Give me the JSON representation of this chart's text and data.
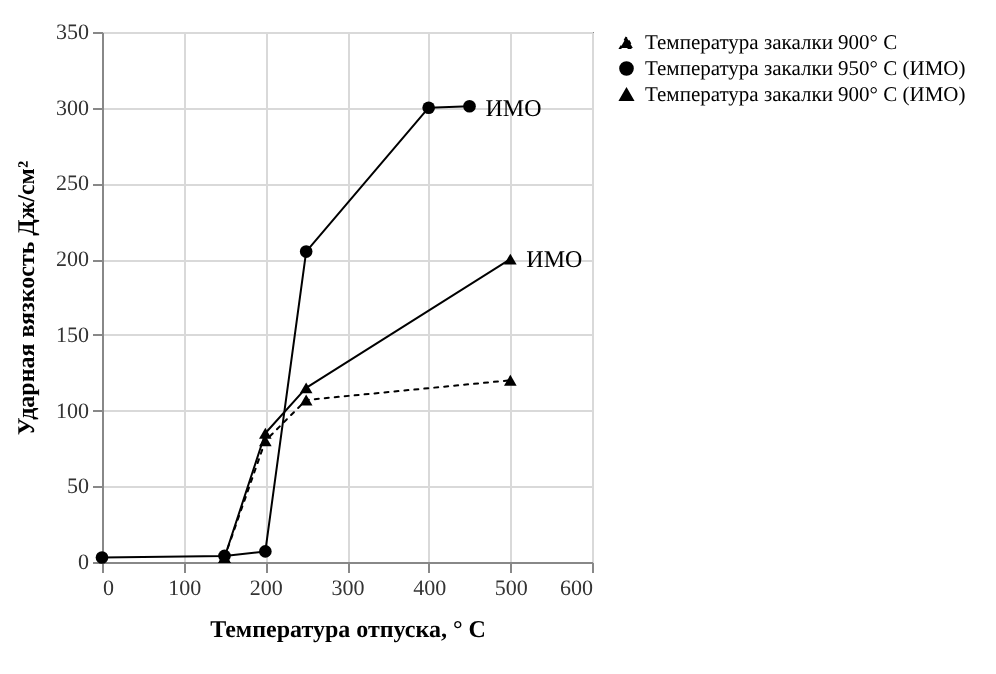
{
  "chart_data": {
    "type": "line",
    "xlabel": "Температура отпуска, ° С",
    "ylabel": "Ударная вязкость Дж/см²",
    "xlim": [
      0,
      600
    ],
    "xticks": [
      0,
      100,
      200,
      300,
      400,
      500,
      600
    ],
    "ylim": [
      0,
      350
    ],
    "yticks": [
      0,
      50,
      100,
      150,
      200,
      250,
      300,
      350
    ],
    "grid": true,
    "legend": "right",
    "annotations": [
      {
        "text": "ИМО",
        "x": 450,
        "y": 300
      },
      {
        "text": "ИМО",
        "x": 500,
        "y": 200
      }
    ],
    "series": [
      {
        "name": "Температура закалки 900° С",
        "color": "#000000",
        "marker": "triangle",
        "line_style": "dotted",
        "x": [
          150,
          200,
          250,
          500
        ],
        "values": [
          3,
          80,
          107,
          120
        ]
      },
      {
        "name": "Температура закалки 950° С (ИМО)",
        "color": "#000000",
        "marker": "circle",
        "line_style": "solid",
        "x": [
          0,
          150,
          200,
          250,
          400,
          450
        ],
        "values": [
          3,
          4,
          7,
          205,
          300,
          301
        ]
      },
      {
        "name": "Температура закалки 900° С (ИМО)",
        "color": "#000000",
        "marker": "triangle",
        "line_style": "solid",
        "x": [
          150,
          200,
          250,
          500
        ],
        "values": [
          3,
          85,
          115,
          200
        ]
      }
    ]
  }
}
